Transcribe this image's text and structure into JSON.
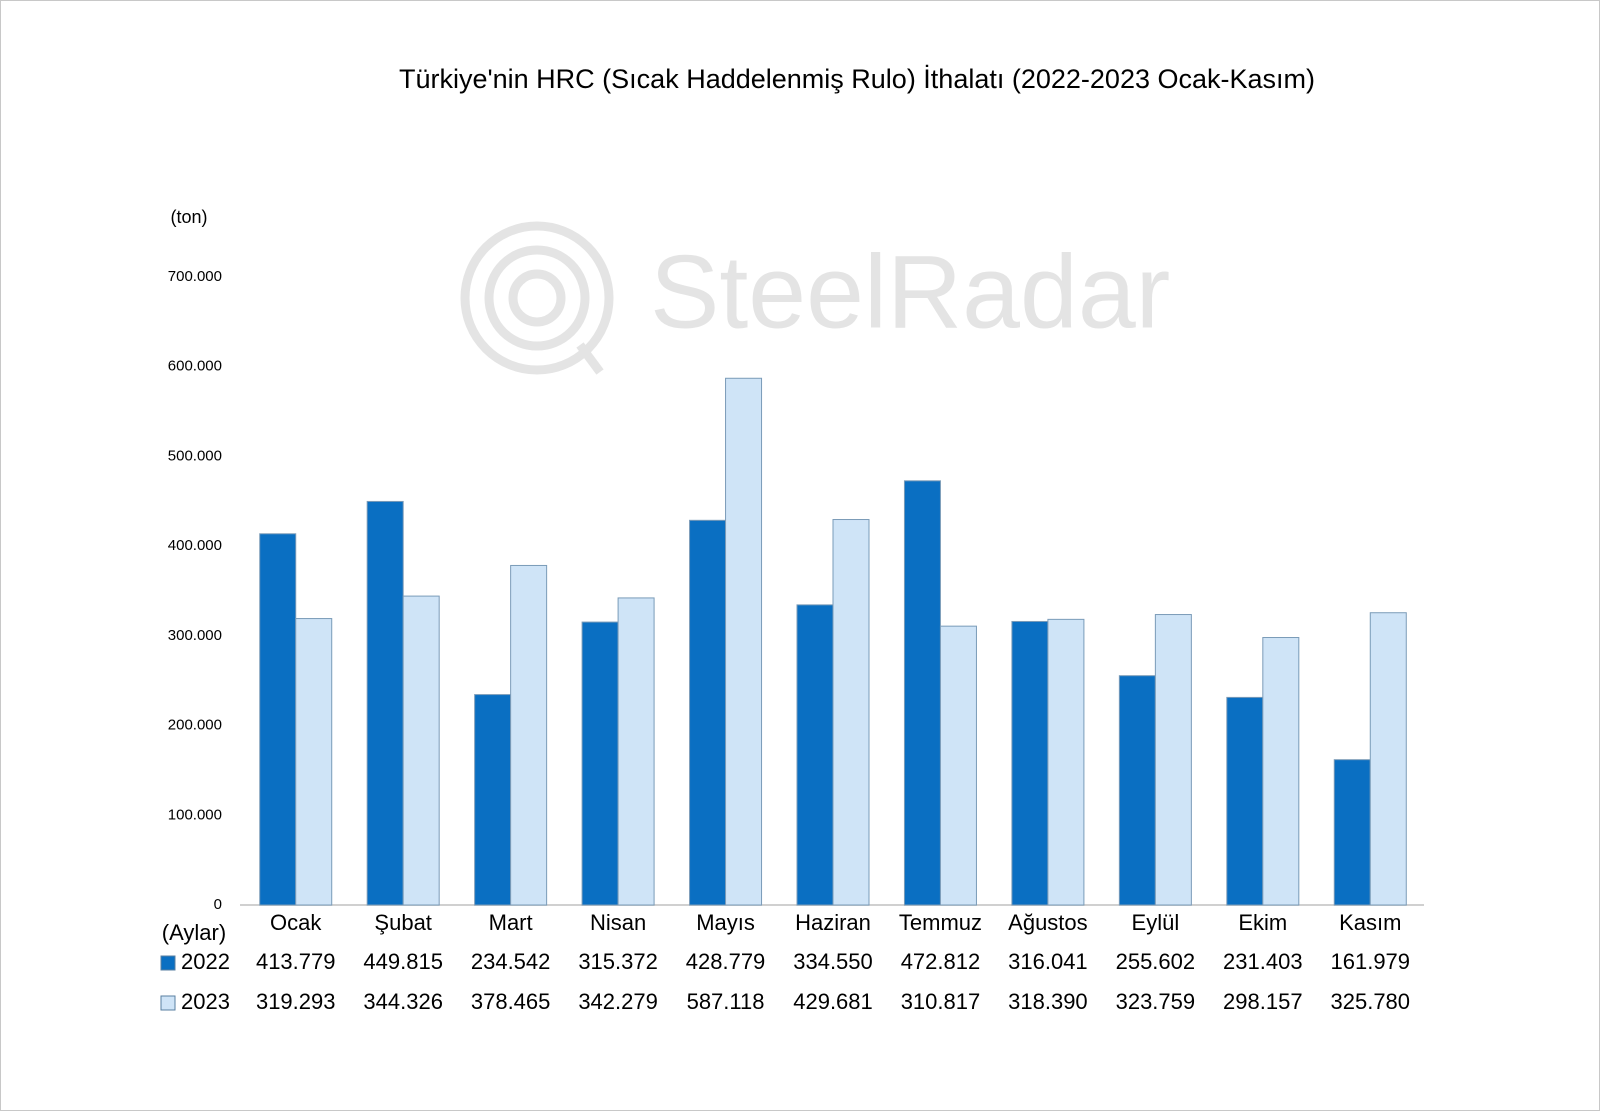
{
  "chart_data": {
    "type": "bar",
    "title": "Türkiye'nin HRC (Sıcak Haddelenmiş Rulo) İthalatı (2022-2023 Ocak-Kasım)",
    "watermark": "SteelRadar",
    "y_label": "(ton)",
    "x_label": "(Aylar)",
    "categories": [
      "Ocak",
      "Şubat",
      "Mart",
      "Nisan",
      "Mayıs",
      "Haziran",
      "Temmuz",
      "Ağustos",
      "Eylül",
      "Ekim",
      "Kasım"
    ],
    "series": [
      {
        "name": "2022",
        "color": "#0a6fc2",
        "values": [
          413779,
          449815,
          234542,
          315372,
          428779,
          334550,
          472812,
          316041,
          255602,
          231403,
          161979
        ],
        "value_labels": [
          "413.779",
          "449.815",
          "234.542",
          "315.372",
          "428.779",
          "334.550",
          "472.812",
          "316.041",
          "255.602",
          "231.403",
          "161.979"
        ]
      },
      {
        "name": "2023",
        "color": "#cfe4f7",
        "values": [
          319293,
          344326,
          378465,
          342279,
          587118,
          429681,
          310817,
          318390,
          323759,
          298157,
          325780
        ],
        "value_labels": [
          "319.293",
          "344.326",
          "378.465",
          "342.279",
          "587.118",
          "429.681",
          "310.817",
          "318.390",
          "323.759",
          "298.157",
          "325.780"
        ]
      }
    ],
    "ylim": [
      0,
      700000
    ],
    "yticks": [
      0,
      {
        "value": 100000,
        "label": "100.000"
      },
      {
        "value": 200000,
        "label": "200.000"
      },
      {
        "value": 300000,
        "label": "300.000"
      },
      {
        "value": 400000,
        "label": "400.000"
      },
      {
        "value": 500000,
        "label": "500.000"
      },
      {
        "value": 600000,
        "label": "600.000"
      },
      {
        "value": 700000,
        "label": "700.000"
      }
    ],
    "grid": false
  }
}
